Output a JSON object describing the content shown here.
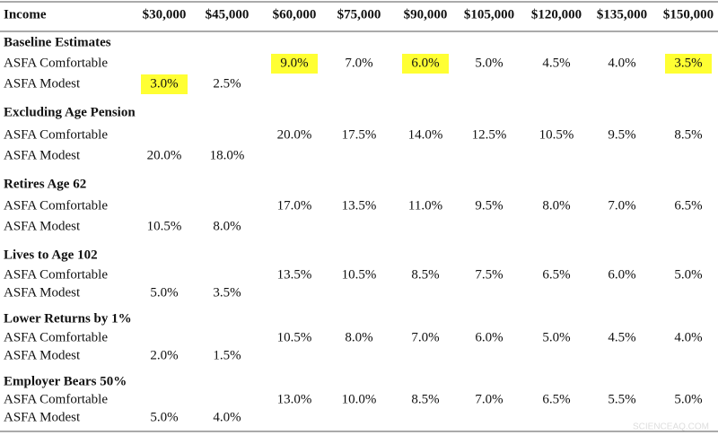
{
  "table": {
    "header": [
      "Income",
      "$30,000",
      "$45,000",
      "$60,000",
      "$75,000",
      "$90,000",
      "$105,000",
      "$120,000",
      "$135,000",
      "$150,000"
    ],
    "highlight_color": "#ffff33",
    "sections": [
      {
        "title": "Baseline Estimates",
        "rows": [
          {
            "label": "ASFA Comfortable",
            "values": [
              null,
              null,
              "9.0%",
              "7.0%",
              "6.0%",
              "5.0%",
              "4.5%",
              "4.0%",
              "3.5%"
            ],
            "highlighted": [
              2,
              4,
              8
            ]
          },
          {
            "label": "ASFA Modest",
            "values": [
              "3.0%",
              "2.5%",
              null,
              null,
              null,
              null,
              null,
              null,
              null
            ],
            "highlighted": [
              0
            ]
          }
        ]
      },
      {
        "title": "Excluding Age Pension",
        "rows": [
          {
            "label": "ASFA Comfortable",
            "values": [
              null,
              null,
              "20.0%",
              "17.5%",
              "14.0%",
              "12.5%",
              "10.5%",
              "9.5%",
              "8.5%"
            ]
          },
          {
            "label": "ASFA Modest",
            "values": [
              "20.0%",
              "18.0%",
              null,
              null,
              null,
              null,
              null,
              null,
              null
            ]
          }
        ]
      },
      {
        "title": "Retires Age 62",
        "rows": [
          {
            "label": "ASFA Comfortable",
            "values": [
              null,
              null,
              "17.0%",
              "13.5%",
              "11.0%",
              "9.5%",
              "8.0%",
              "7.0%",
              "6.5%"
            ]
          },
          {
            "label": "ASFA Modest",
            "values": [
              "10.5%",
              "8.0%",
              null,
              null,
              null,
              null,
              null,
              null,
              null
            ]
          }
        ]
      },
      {
        "title": "Lives to Age 102",
        "rows": [
          {
            "label": "ASFA Comfortable",
            "values": [
              null,
              null,
              "13.5%",
              "10.5%",
              "8.5%",
              "7.5%",
              "6.5%",
              "6.0%",
              "5.0%"
            ]
          },
          {
            "label": "ASFA Modest",
            "values": [
              "5.0%",
              "3.5%",
              null,
              null,
              null,
              null,
              null,
              null,
              null
            ]
          }
        ]
      },
      {
        "title": "Lower Returns by 1%",
        "rows": [
          {
            "label": "ASFA Comfortable",
            "values": [
              null,
              null,
              "10.5%",
              "8.0%",
              "7.0%",
              "6.0%",
              "5.0%",
              "4.5%",
              "4.0%"
            ]
          },
          {
            "label": "ASFA Modest",
            "values": [
              "2.0%",
              "1.5%",
              null,
              null,
              null,
              null,
              null,
              null,
              null
            ]
          }
        ]
      },
      {
        "title": "Employer Bears 50%",
        "rows": [
          {
            "label": "ASFA Comfortable",
            "values": [
              null,
              null,
              "13.0%",
              "10.0%",
              "8.5%",
              "7.0%",
              "6.5%",
              "5.5%",
              "5.0%"
            ]
          },
          {
            "label": "ASFA Modest",
            "values": [
              "5.0%",
              "4.0%",
              null,
              null,
              null,
              null,
              null,
              null,
              null
            ]
          }
        ]
      }
    ],
    "watermark": "SCIENCEAQ.COM"
  }
}
